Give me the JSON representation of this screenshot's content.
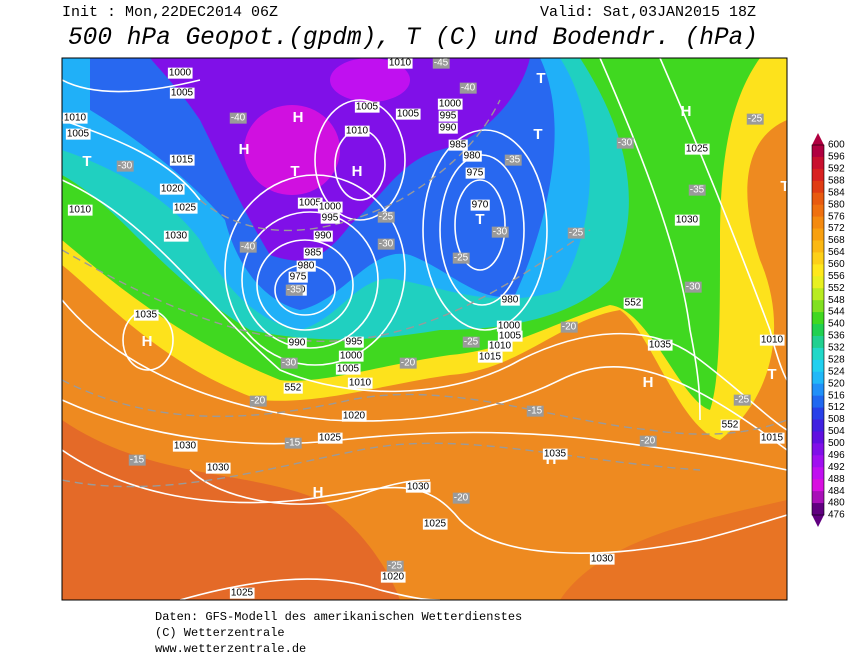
{
  "header": {
    "init": "Init : Mon,22DEC2014 06Z",
    "valid": "Valid: Sat,03JAN2015 18Z",
    "title": "500 hPa Geopot.(gpdm), T (C) und Bodendr. (hPa)"
  },
  "colorbar": {
    "levels": [
      600,
      596,
      592,
      588,
      584,
      580,
      576,
      572,
      568,
      564,
      560,
      556,
      552,
      548,
      544,
      540,
      536,
      532,
      528,
      524,
      520,
      516,
      512,
      508,
      504,
      500,
      496,
      492,
      488,
      484,
      480,
      476
    ],
    "colors": [
      "#b00040",
      "#c8102e",
      "#d82020",
      "#e03c14",
      "#e85a10",
      "#ef7010",
      "#f48a10",
      "#f8a010",
      "#fbb814",
      "#fdd018",
      "#ffe81c",
      "#e8f020",
      "#b8ec20",
      "#80e020",
      "#40d820",
      "#20d050",
      "#20d090",
      "#20d8c8",
      "#20d0f0",
      "#20b8f8",
      "#2090f8",
      "#2068f0",
      "#2840e8",
      "#4020e0",
      "#6010e0",
      "#8010e8",
      "#a010f0",
      "#c010f0",
      "#d810e0",
      "#a810b8",
      "#600080"
    ]
  },
  "map": {
    "pressure_centers": [
      "H",
      "H",
      "H",
      "H",
      "H",
      "H",
      "H",
      "H",
      "T",
      "T",
      "T",
      "T",
      "T",
      "T",
      "T"
    ],
    "pressure_labels": [
      "1000",
      "1005",
      "1010",
      "1010",
      "1005",
      "1015",
      "1020",
      "1025",
      "1030",
      "1035",
      "1010",
      "1005",
      "1010",
      "1005",
      "1000",
      "995",
      "990",
      "985",
      "980",
      "975",
      "970",
      "1025",
      "1030",
      "1005",
      "1000",
      "995",
      "990",
      "985",
      "980",
      "975",
      "970",
      "990",
      "995",
      "1000",
      "1005",
      "1010",
      "1020",
      "1025",
      "1030",
      "1030",
      "1030",
      "1025",
      "1020",
      "1025",
      "1030",
      "1035",
      "1035",
      "1010",
      "1015",
      "1015",
      "1010",
      "1005",
      "1000",
      "980",
      "552",
      "552",
      "552"
    ],
    "temperature_labels": [
      "-40",
      "-45",
      "-40",
      "-35",
      "-30",
      "-35",
      "-25",
      "-30",
      "-25",
      "-30",
      "-25",
      "-30",
      "-35",
      "-40",
      "-30",
      "-25",
      "-20",
      "-25",
      "-20",
      "-30",
      "-20",
      "-15",
      "-15",
      "-15",
      "-20",
      "-25",
      "-20",
      "-25"
    ]
  },
  "footer": {
    "lines": [
      "Daten: GFS-Modell des amerikanischen Wetterdienstes",
      "(C) Wetterzentrale",
      "www.wetterzentrale.de"
    ]
  }
}
